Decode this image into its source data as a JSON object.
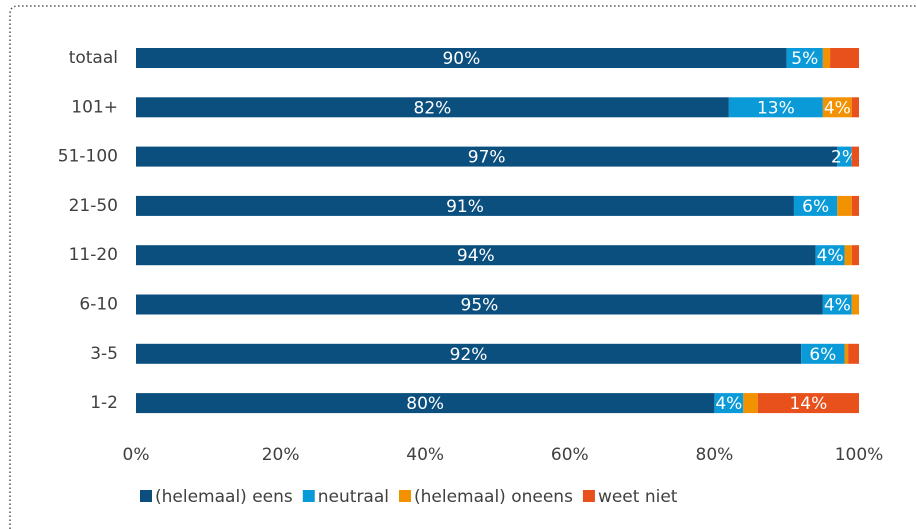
{
  "chart_data": {
    "type": "stacked-barh",
    "categories": [
      "totaal",
      "101+",
      "51-100",
      "21-50",
      "11-20",
      "6-10",
      "3-5",
      "1-2"
    ],
    "series": [
      {
        "name": "(helemaal) eens",
        "color": "#0b4f7f",
        "values": [
          90,
          82,
          97,
          91,
          94,
          95,
          92,
          80
        ],
        "value_labels": [
          "90%",
          "82%",
          "97%",
          "91%",
          "94%",
          "95%",
          "92%",
          "80%"
        ]
      },
      {
        "name": "neutraal",
        "color": "#0a9ad8",
        "values": [
          5,
          13,
          2,
          6,
          4,
          4,
          6,
          4
        ],
        "value_labels": [
          "5%",
          "13%",
          "2%",
          "6%",
          "4%",
          "4%",
          "6%",
          "4%"
        ]
      },
      {
        "name": "(helemaal) oneens",
        "color": "#f39200",
        "values": [
          1,
          4,
          0,
          2,
          1,
          1,
          0.5,
          2
        ],
        "value_labels": [
          null,
          "4%",
          null,
          null,
          null,
          null,
          null,
          null
        ]
      },
      {
        "name": "weet niet",
        "color": "#e8501c",
        "values": [
          4,
          1,
          1,
          1,
          1,
          0,
          1.5,
          14
        ],
        "value_labels": [
          null,
          null,
          null,
          null,
          null,
          null,
          null,
          "14%"
        ]
      }
    ],
    "xlim": [
      0,
      100
    ],
    "xticks": [
      {
        "value": 0,
        "label": "0%"
      },
      {
        "value": 20,
        "label": "20%"
      },
      {
        "value": 40,
        "label": "40%"
      },
      {
        "value": 60,
        "label": "60%"
      },
      {
        "value": 80,
        "label": "80%"
      },
      {
        "value": 100,
        "label": "100%"
      }
    ],
    "legend": "bottom"
  }
}
